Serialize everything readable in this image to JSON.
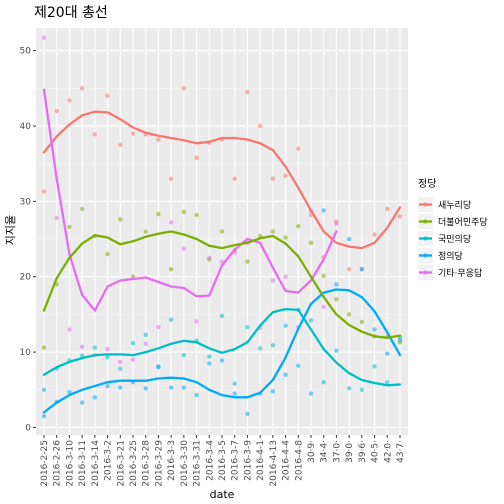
{
  "chart_data": {
    "type": "scatter",
    "title": "제20대 총선",
    "xlabel": "date",
    "ylabel": "지지율",
    "ylim": [
      -1,
      53
    ],
    "yticks": [
      0,
      10,
      20,
      30,
      40,
      50
    ],
    "grid": true,
    "legend_title": "정당",
    "legend_position": "right",
    "categories": [
      "2016-2-25",
      "2016-2-26",
      "2016-3-10",
      "2016-3-11",
      "2016-3-14",
      "2016-3-2",
      "2016-3-21",
      "2016-3-25",
      "2016-3-28",
      "2016-3-29",
      "2016-3-3",
      "2016-3-30",
      "2016-3-31",
      "2016-3-4",
      "2016-3-5",
      "2016-3-7",
      "2016-3-9",
      "2016-4-1",
      "2016-4-13",
      "2016-4-4",
      "2016-4-8",
      "30·9·",
      "34·4·",
      "37·0·",
      "39·0·",
      "39·6·",
      "40·5·",
      "42·0·",
      "43·7·"
    ],
    "series": [
      {
        "name": "새누리당",
        "color": "#F8766D",
        "points": [
          [
            1,
            31.3
          ],
          [
            2,
            42
          ],
          [
            3,
            43.4
          ],
          [
            4,
            45
          ],
          [
            5,
            38.9
          ],
          [
            6,
            44
          ],
          [
            7,
            37.5
          ],
          [
            8,
            39
          ],
          [
            9,
            38.9
          ],
          [
            10,
            38.2
          ],
          [
            11,
            33
          ],
          [
            12,
            45
          ],
          [
            13,
            35.8
          ],
          [
            14,
            37.8
          ],
          [
            15,
            38.2
          ],
          [
            16,
            33
          ],
          [
            17,
            44.5
          ],
          [
            18,
            40
          ],
          [
            19,
            33
          ],
          [
            20,
            33.4
          ],
          [
            21,
            37
          ],
          [
            22,
            28.2
          ],
          [
            23,
            22.6
          ],
          [
            24,
            27.3
          ],
          [
            25,
            21
          ],
          [
            26,
            21
          ],
          [
            27,
            25.6
          ],
          [
            28,
            29
          ],
          [
            29,
            28
          ]
        ],
        "trend": [
          [
            1,
            36.5
          ],
          [
            2,
            38.6
          ],
          [
            3,
            40.2
          ],
          [
            4,
            41.4
          ],
          [
            5,
            41.9
          ],
          [
            6,
            41.8
          ],
          [
            7,
            40.9
          ],
          [
            8,
            39.8
          ],
          [
            9,
            39.1
          ],
          [
            10,
            38.7
          ],
          [
            11,
            38.4
          ],
          [
            12,
            38.1
          ],
          [
            13,
            37.7
          ],
          [
            14,
            37.9
          ],
          [
            15,
            38.4
          ],
          [
            16,
            38.4
          ],
          [
            17,
            38.2
          ],
          [
            18,
            37.7
          ],
          [
            19,
            36.8
          ],
          [
            20,
            34.6
          ],
          [
            21,
            31.8
          ],
          [
            22,
            28.8
          ],
          [
            23,
            26
          ],
          [
            24,
            24.5
          ],
          [
            25,
            24
          ],
          [
            26,
            23.8
          ],
          [
            27,
            24.5
          ],
          [
            28,
            26.5
          ],
          [
            29,
            29.2
          ]
        ]
      },
      {
        "name": "더불어민주당",
        "color": "#7CAE00",
        "points": [
          [
            1,
            10.6
          ],
          [
            2,
            19
          ],
          [
            3,
            26.6
          ],
          [
            4,
            29
          ],
          [
            5,
            25.4
          ],
          [
            6,
            23
          ],
          [
            7,
            27.6
          ],
          [
            8,
            20
          ],
          [
            9,
            26
          ],
          [
            10,
            28.3
          ],
          [
            11,
            21
          ],
          [
            12,
            28.6
          ],
          [
            13,
            28.2
          ],
          [
            14,
            22.3
          ],
          [
            15,
            26
          ],
          [
            16,
            23.5
          ],
          [
            17,
            22
          ],
          [
            18,
            25.4
          ],
          [
            19,
            26
          ],
          [
            20,
            25.2
          ],
          [
            21,
            26.7
          ],
          [
            22,
            24.5
          ],
          [
            23,
            20.1
          ],
          [
            24,
            17
          ],
          [
            25,
            15
          ],
          [
            26,
            14
          ],
          [
            27,
            12.1
          ],
          [
            28,
            12
          ],
          [
            29,
            11.3
          ]
        ]
      },
      {
        "name": "국민의당",
        "color": "#00BFC4",
        "points": [
          [
            1,
            5
          ],
          [
            2,
            7.8
          ],
          [
            3,
            8.9
          ],
          [
            4,
            9.5
          ],
          [
            5,
            10.6
          ],
          [
            6,
            9.3
          ],
          [
            7,
            7.8
          ],
          [
            8,
            11.2
          ],
          [
            9,
            12.3
          ],
          [
            10,
            8.1
          ],
          [
            11,
            14.3
          ],
          [
            12,
            9.6
          ],
          [
            13,
            11.5
          ],
          [
            14,
            9.4
          ],
          [
            15,
            14.8
          ],
          [
            16,
            5.8
          ],
          [
            17,
            13.3
          ],
          [
            18,
            10.5
          ],
          [
            19,
            10.9
          ],
          [
            20,
            13.5
          ],
          [
            21,
            15.6
          ],
          [
            22,
            14.2
          ],
          [
            23,
            6
          ],
          [
            24,
            10.2
          ],
          [
            25,
            5.2
          ],
          [
            26,
            5
          ],
          [
            27,
            8.1
          ],
          [
            28,
            6
          ],
          [
            29,
            12
          ]
        ],
        "trend": [
          [
            1,
            7
          ],
          [
            2,
            8
          ],
          [
            3,
            8.7
          ],
          [
            4,
            9.2
          ],
          [
            5,
            9.6
          ],
          [
            6,
            9.7
          ],
          [
            7,
            9.7
          ],
          [
            8,
            9.6
          ],
          [
            9,
            10
          ],
          [
            10,
            10.5
          ],
          [
            11,
            11.1
          ],
          [
            12,
            11.5
          ],
          [
            13,
            11.3
          ],
          [
            14,
            10.5
          ],
          [
            15,
            9.9
          ],
          [
            16,
            10.4
          ],
          [
            17,
            11.3
          ],
          [
            18,
            13.5
          ],
          [
            19,
            15.3
          ],
          [
            20,
            15.7
          ],
          [
            21,
            15.6
          ],
          [
            22,
            13
          ],
          [
            23,
            10.4
          ],
          [
            24,
            8.6
          ],
          [
            25,
            7.2
          ],
          [
            26,
            6.3
          ],
          [
            27,
            5.9
          ],
          [
            28,
            5.6
          ],
          [
            29,
            5.7
          ]
        ]
      },
      {
        "name": "정의당",
        "color": "#00A9FF",
        "points": [
          [
            1,
            1.5
          ],
          [
            2,
            3.4
          ],
          [
            3,
            4.7
          ],
          [
            4,
            3.3
          ],
          [
            5,
            4
          ],
          [
            6,
            5.5
          ],
          [
            7,
            5.3
          ],
          [
            8,
            6
          ],
          [
            9,
            5.2
          ],
          [
            10,
            8
          ],
          [
            11,
            5.3
          ],
          [
            12,
            5.3
          ],
          [
            13,
            4.3
          ],
          [
            14,
            8.5
          ],
          [
            15,
            8.9
          ],
          [
            16,
            4.5
          ],
          [
            17,
            1.8
          ],
          [
            18,
            4.5
          ],
          [
            19,
            4.8
          ],
          [
            20,
            7
          ],
          [
            21,
            8.2
          ],
          [
            22,
            4.5
          ],
          [
            23,
            28.8
          ],
          [
            24,
            19
          ],
          [
            25,
            25
          ],
          [
            26,
            21
          ],
          [
            27,
            13
          ],
          [
            28,
            9.8
          ],
          [
            29,
            11.6
          ]
        ],
        "trend": [
          [
            1,
            2
          ],
          [
            2,
            3.3
          ],
          [
            3,
            4.3
          ],
          [
            4,
            5
          ],
          [
            5,
            5.5
          ],
          [
            6,
            6
          ],
          [
            7,
            6.2
          ],
          [
            8,
            6.2
          ],
          [
            9,
            6.2
          ],
          [
            10,
            6.5
          ],
          [
            11,
            6.6
          ],
          [
            12,
            6.5
          ],
          [
            13,
            6
          ],
          [
            14,
            5
          ],
          [
            15,
            4.3
          ],
          [
            16,
            4
          ],
          [
            17,
            4
          ],
          [
            18,
            4.6
          ],
          [
            19,
            6.3
          ],
          [
            20,
            9.3
          ],
          [
            21,
            13.1
          ],
          [
            22,
            16.4
          ],
          [
            23,
            17.9
          ],
          [
            24,
            18.3
          ],
          [
            25,
            18.2
          ],
          [
            26,
            17.3
          ],
          [
            27,
            15.4
          ],
          [
            28,
            12.6
          ],
          [
            29,
            9.6
          ]
        ]
      },
      {
        "name": "기타·무응답",
        "color": "#E76BF3",
        "points": [
          [
            1,
            51.7
          ],
          [
            2,
            27.8
          ],
          [
            3,
            13
          ],
          [
            4,
            10.7
          ],
          [
            5,
            9.6
          ],
          [
            6,
            10.4
          ],
          [
            7,
            8.7
          ],
          [
            8,
            9
          ],
          [
            9,
            11.1
          ],
          [
            10,
            13.3
          ],
          [
            11,
            27.2
          ],
          [
            12,
            23.7
          ],
          [
            13,
            14.1
          ],
          [
            14,
            22.5
          ],
          [
            15,
            22
          ],
          [
            16,
            23.2
          ],
          [
            17,
            24.5
          ],
          [
            18,
            13.2
          ],
          [
            19,
            19.5
          ],
          [
            20,
            20
          ],
          [
            21,
            13.3
          ],
          [
            22,
            28.7
          ],
          [
            23,
            16
          ],
          [
            24,
            27
          ]
        ],
        "trend": [
          [
            1,
            44.8
          ],
          [
            2,
            33
          ],
          [
            3,
            23
          ],
          [
            4,
            17.6
          ],
          [
            5,
            15.5
          ],
          [
            6,
            18.7
          ],
          [
            7,
            19.5
          ],
          [
            8,
            19.7
          ],
          [
            9,
            19.9
          ],
          [
            10,
            19.3
          ],
          [
            11,
            18.7
          ],
          [
            12,
            18.5
          ],
          [
            13,
            17.4
          ],
          [
            14,
            17.5
          ],
          [
            15,
            21.5
          ],
          [
            16,
            23.6
          ],
          [
            17,
            25
          ],
          [
            18,
            24.5
          ],
          [
            19,
            21.2
          ],
          [
            20,
            18.1
          ],
          [
            21,
            17.9
          ],
          [
            22,
            19.5
          ],
          [
            23,
            22.3
          ],
          [
            24,
            26
          ]
        ]
      }
    ],
    "extra_trend": {
      "name": "더불어민주당",
      "color": "#7CAE00",
      "points": [
        [
          1,
          15.5
        ],
        [
          2,
          19.8
        ],
        [
          3,
          22.5
        ],
        [
          4,
          24.4
        ],
        [
          5,
          25.5
        ],
        [
          6,
          25.2
        ],
        [
          7,
          24.3
        ],
        [
          8,
          24.7
        ],
        [
          9,
          25.3
        ],
        [
          10,
          25.7
        ],
        [
          11,
          26
        ],
        [
          12,
          25.6
        ],
        [
          13,
          25
        ],
        [
          14,
          24.1
        ],
        [
          15,
          23.8
        ],
        [
          16,
          24.2
        ],
        [
          17,
          24.5
        ],
        [
          18,
          25.1
        ],
        [
          19,
          25.4
        ],
        [
          20,
          24.4
        ],
        [
          21,
          22.7
        ],
        [
          22,
          20
        ],
        [
          23,
          17.3
        ],
        [
          24,
          15
        ],
        [
          25,
          13.6
        ],
        [
          26,
          12.7
        ],
        [
          27,
          12.1
        ],
        [
          28,
          11.9
        ],
        [
          29,
          12.2
        ]
      ]
    }
  }
}
